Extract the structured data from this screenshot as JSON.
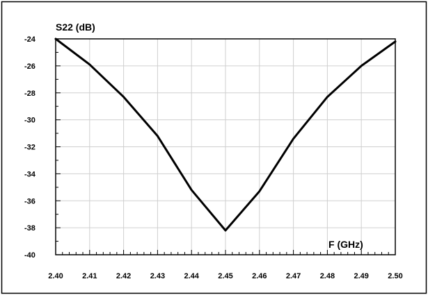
{
  "chart_data": {
    "type": "line",
    "title": "",
    "xlabel": "F (GHz)",
    "ylabel": "S22 (dB)",
    "xlim": [
      2.4,
      2.5
    ],
    "ylim": [
      -40,
      -24
    ],
    "x_ticks": [
      "2.40",
      "2.41",
      "2.42",
      "2.43",
      "2.44",
      "2.45",
      "2.46",
      "2.47",
      "2.48",
      "2.49",
      "2.50"
    ],
    "y_ticks": [
      "-24",
      "-26",
      "-28",
      "-30",
      "-32",
      "-34",
      "-36",
      "-38",
      "-40"
    ],
    "grid": true,
    "legend": "none",
    "series": [
      {
        "color": "#000000",
        "x": [
          2.4,
          2.41,
          2.42,
          2.43,
          2.44,
          2.45,
          2.46,
          2.47,
          2.48,
          2.49,
          2.5
        ],
        "y": [
          -24.0,
          -25.9,
          -28.3,
          -31.2,
          -35.2,
          -38.2,
          -35.3,
          -31.4,
          -28.3,
          -26.0,
          -24.2
        ]
      }
    ]
  },
  "colors": {
    "grid": "#cfcfcf",
    "line": "#000000",
    "frame": "#000000"
  }
}
